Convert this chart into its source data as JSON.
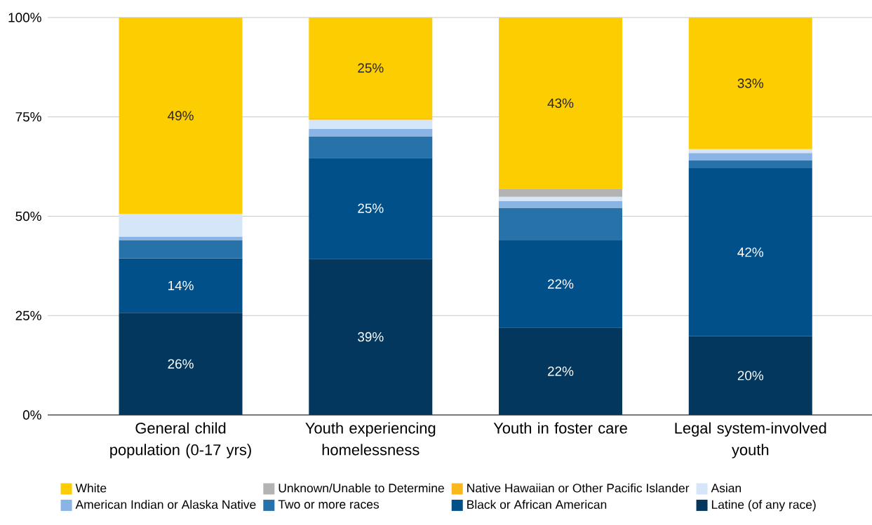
{
  "chart_data": {
    "type": "bar",
    "stacked": true,
    "categories": [
      "General child population (0-17 yrs)",
      "Youth experiencing homelessness",
      "Youth in foster care",
      "Legal system-involved youth"
    ],
    "series": [
      {
        "name": "Latine (of any race)",
        "color": "#03375d",
        "values": [
          25.7,
          39.3,
          22.0,
          19.8
        ],
        "value_labels": [
          "26%",
          "39%",
          "22%",
          "20%"
        ]
      },
      {
        "name": "Black or African American",
        "color": "#02508a",
        "values": [
          13.7,
          25.4,
          21.9,
          42.3
        ],
        "value_labels": [
          "14%",
          "25%",
          "22%",
          "42%"
        ]
      },
      {
        "name": "Two or more races",
        "color": "#2872aa",
        "values": [
          4.6,
          5.4,
          8.2,
          1.9
        ],
        "value_labels": [
          null,
          null,
          null,
          null
        ]
      },
      {
        "name": "American Indian or Alaska Native",
        "color": "#8ab4e6",
        "values": [
          0.9,
          1.9,
          1.7,
          1.9
        ],
        "value_labels": [
          null,
          null,
          null,
          null
        ]
      },
      {
        "name": "Asian",
        "color": "#d5e6f9",
        "values": [
          5.7,
          2.3,
          1.1,
          1.0
        ],
        "value_labels": [
          null,
          null,
          null,
          null
        ]
      },
      {
        "name": "Native Hawaiian or Other Pacific Islander",
        "color": "#fbb81c",
        "values": [
          null,
          0.3,
          null,
          null
        ],
        "value_labels": [
          null,
          null,
          null,
          null
        ]
      },
      {
        "name": "Unknown/Unable to Determine",
        "color": "#b3b3b3",
        "values": [
          null,
          null,
          2.0,
          null
        ],
        "value_labels": [
          null,
          null,
          null,
          null
        ]
      },
      {
        "name": "White",
        "color": "#fccd00",
        "values": [
          49.4,
          25.4,
          43.1,
          33.1
        ],
        "value_labels": [
          "49%",
          "25%",
          "43%",
          "33%"
        ]
      }
    ],
    "ylim": [
      0,
      100
    ],
    "yticks": [
      {
        "value": 0,
        "label": "0%"
      },
      {
        "value": 25,
        "label": "25%"
      },
      {
        "value": 50,
        "label": "50%"
      },
      {
        "value": 75,
        "label": "75%"
      },
      {
        "value": 100,
        "label": "100%"
      }
    ],
    "grid": "y",
    "legend": "bottom"
  }
}
